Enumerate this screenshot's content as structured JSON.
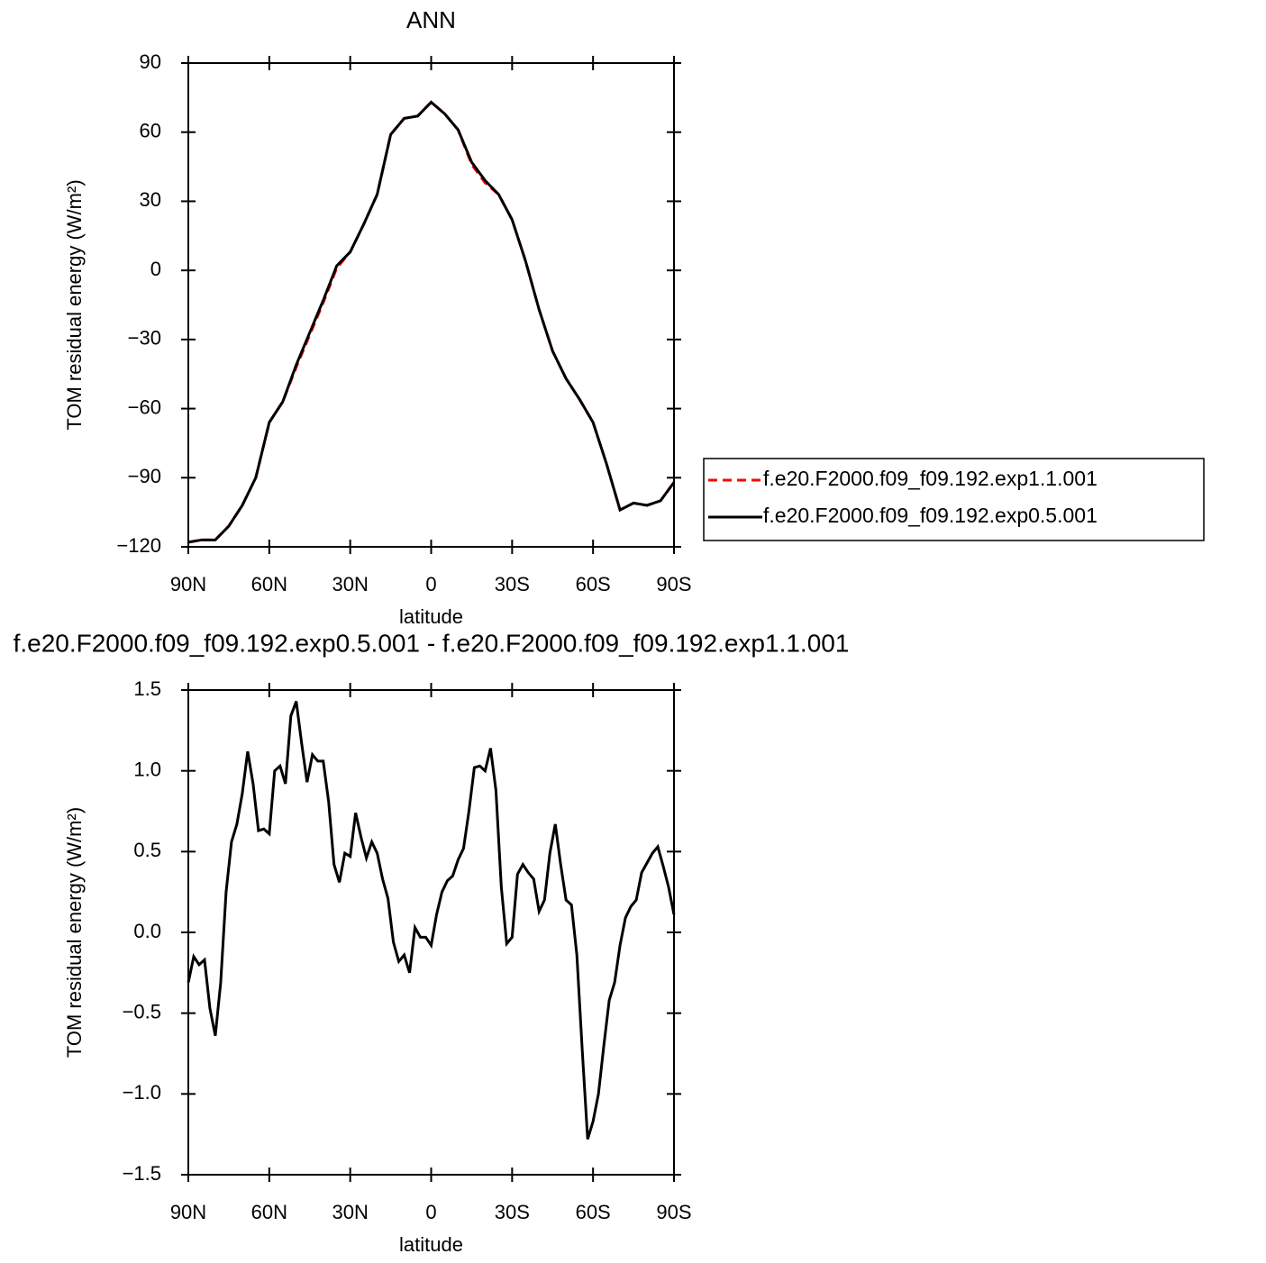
{
  "chart_data": [
    {
      "type": "line",
      "title": "ANN",
      "xlabel": "latitude",
      "ylabel": "TOM residual energy (W/m²)",
      "x": [
        90,
        85,
        80,
        75,
        70,
        65,
        60,
        55,
        50,
        45,
        40,
        35,
        30,
        25,
        20,
        15,
        10,
        5,
        0,
        -5,
        -10,
        -15,
        -20,
        -25,
        -30,
        -35,
        -40,
        -45,
        -50,
        -55,
        -60,
        -65,
        -70,
        -75,
        -80,
        -85,
        -90
      ],
      "xlim": [
        90,
        -90
      ],
      "xticks": [
        {
          "value": 90,
          "label": "90N"
        },
        {
          "value": 60,
          "label": "60N"
        },
        {
          "value": 30,
          "label": "30N"
        },
        0,
        {
          "value": -30,
          "label": "30S"
        },
        {
          "value": -60,
          "label": "60S"
        },
        {
          "value": -90,
          "label": "90S"
        }
      ],
      "ylim": [
        -120,
        90
      ],
      "yticks": [
        {
          "value": -120,
          "label": "−120"
        },
        {
          "value": -90,
          "label": "−90"
        },
        {
          "value": -60,
          "label": "−60"
        },
        {
          "value": -30,
          "label": "−30"
        },
        0,
        30,
        60,
        90
      ],
      "legend": "outside-right",
      "series": [
        {
          "name": "f.e20.F2000.f09_f09.192.exp1.1.001",
          "color": "#ff0000",
          "line_style": "dashed",
          "values": [
            -118,
            -117,
            -117,
            -111,
            -102,
            -90,
            -66,
            -57,
            -42,
            -28,
            -14,
            1,
            8,
            20,
            33,
            59,
            66,
            67,
            73,
            68,
            61,
            46,
            38,
            33,
            22,
            4,
            -17,
            -35,
            -47,
            -56,
            -66,
            -84,
            -104,
            -101,
            -102,
            -100,
            -92
          ]
        },
        {
          "name": "f.e20.F2000.f09_f09.192.exp0.5.001",
          "color": "#000000",
          "line_style": "solid",
          "values": [
            -118,
            -117,
            -117,
            -111,
            -102,
            -90,
            -66,
            -57,
            -41,
            -27,
            -13,
            2,
            8,
            20,
            33,
            59,
            66,
            67,
            73,
            68,
            61,
            47,
            39,
            33,
            22,
            4,
            -17,
            -35,
            -47,
            -56,
            -66,
            -84,
            -104,
            -101,
            -102,
            -100,
            -92
          ]
        }
      ]
    },
    {
      "type": "line",
      "title": "f.e20.F2000.f09_f09.192.exp0.5.001 - f.e20.F2000.f09_f09.192.exp1.1.001",
      "xlabel": "latitude",
      "ylabel": "TOM residual energy (W/m²)",
      "x": [
        90,
        88,
        86,
        84,
        82,
        80,
        78,
        76,
        74,
        72,
        70,
        68,
        66,
        64,
        62,
        60,
        58,
        56,
        54,
        52,
        50,
        48,
        46,
        44,
        42,
        40,
        38,
        36,
        34,
        32,
        30,
        28,
        26,
        24,
        22,
        20,
        18,
        16,
        14,
        12,
        10,
        8,
        6,
        4,
        2,
        0,
        -2,
        -4,
        -6,
        -8,
        -10,
        -12,
        -14,
        -16,
        -18,
        -20,
        -22,
        -24,
        -26,
        -28,
        -30,
        -32,
        -34,
        -36,
        -38,
        -40,
        -42,
        -44,
        -46,
        -48,
        -50,
        -52,
        -54,
        -56,
        -58,
        -60,
        -62,
        -64,
        -66,
        -68,
        -70,
        -72,
        -74,
        -76,
        -78,
        -80,
        -82,
        -84,
        -86,
        -88,
        -90
      ],
      "xlim": [
        90,
        -90
      ],
      "xticks": [
        {
          "value": 90,
          "label": "90N"
        },
        {
          "value": 60,
          "label": "60N"
        },
        {
          "value": 30,
          "label": "30N"
        },
        0,
        {
          "value": -30,
          "label": "30S"
        },
        {
          "value": -60,
          "label": "60S"
        },
        {
          "value": -90,
          "label": "90S"
        }
      ],
      "ylim": [
        -1.5,
        1.5
      ],
      "yticks": [
        {
          "value": -1.5,
          "label": "−1.5"
        },
        {
          "value": -1,
          "label": "−1.0"
        },
        {
          "value": -0.5,
          "label": "−0.5"
        },
        {
          "value": 0,
          "label": "0.0"
        },
        0.5,
        {
          "value": 1,
          "label": "1.0"
        },
        1.5
      ],
      "series": [
        {
          "color": "#000000",
          "line_style": "solid",
          "values": [
            -0.31,
            -0.15,
            -0.2,
            -0.17,
            -0.47,
            -0.64,
            -0.31,
            0.25,
            0.56,
            0.67,
            0.86,
            1.12,
            0.92,
            0.63,
            0.64,
            0.61,
            1.0,
            1.03,
            0.92,
            1.34,
            1.43,
            1.17,
            0.93,
            1.1,
            1.06,
            1.06,
            0.81,
            0.42,
            0.31,
            0.49,
            0.47,
            0.74,
            0.59,
            0.46,
            0.56,
            0.49,
            0.33,
            0.21,
            -0.06,
            -0.18,
            -0.14,
            -0.25,
            0.03,
            -0.03,
            -0.03,
            -0.08,
            0.11,
            0.25,
            0.32,
            0.35,
            0.45,
            0.52,
            0.75,
            1.02,
            1.03,
            1.0,
            1.14,
            0.88,
            0.28,
            -0.07,
            -0.03,
            0.36,
            0.42,
            0.37,
            0.33,
            0.13,
            0.2,
            0.49,
            0.67,
            0.42,
            0.2,
            0.17,
            -0.14,
            -0.73,
            -1.28,
            -1.17,
            -1.0,
            -0.7,
            -0.42,
            -0.31,
            -0.08,
            0.09,
            0.16,
            0.2,
            0.37,
            0.43,
            0.49,
            0.53,
            0.41,
            0.28,
            0.11
          ]
        }
      ]
    }
  ]
}
